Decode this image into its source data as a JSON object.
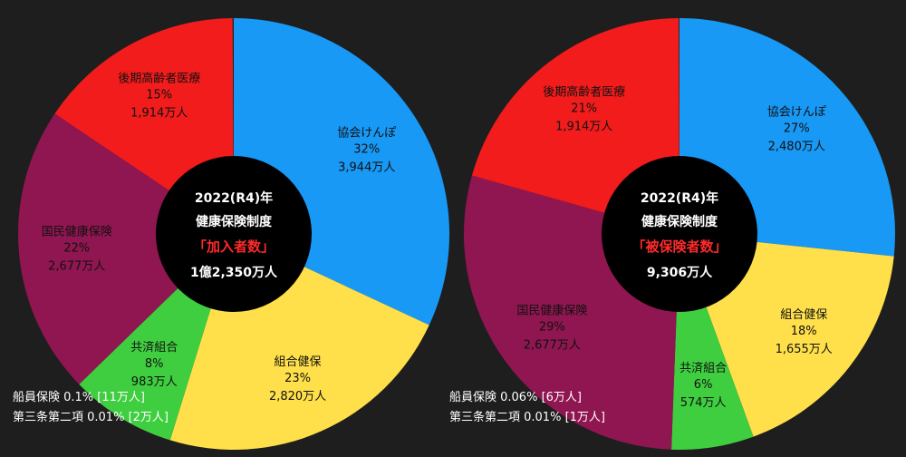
{
  "chart_data": [
    {
      "type": "pie",
      "title": "2022(R4)年 健康保険制度",
      "subtitle": "「加入者数」",
      "total": "1億2,350万人",
      "slices": [
        {
          "name": "協会けんぽ",
          "percent": "32%",
          "value": "3,944万人",
          "share": 0.3194,
          "color": "#1899f5"
        },
        {
          "name": "組合健保",
          "percent": "23%",
          "value": "2,820万人",
          "share": 0.2283,
          "color": "#ffe04a"
        },
        {
          "name": "共済組合",
          "percent": "8%",
          "value": "983万人",
          "share": 0.0796,
          "color": "#3fce3f"
        },
        {
          "name": "国民健康保険",
          "percent": "22%",
          "value": "2,677万人",
          "share": 0.2168,
          "color": "#8f1650"
        },
        {
          "name": "後期高齢者医療",
          "percent": "15%",
          "value": "1,914万人",
          "share": 0.155,
          "color": "#f21c1c"
        }
      ],
      "notes": [
        "船員保険 0.1% [11万人]",
        "第三条第二項 0.01% [2万人]"
      ]
    },
    {
      "type": "pie",
      "title": "2022(R4)年 健康保険制度",
      "subtitle": "「被保険者数」",
      "total": "9,306万人",
      "slices": [
        {
          "name": "協会けんぽ",
          "percent": "27%",
          "value": "2,480万人",
          "share": 0.2665,
          "color": "#1899f5"
        },
        {
          "name": "組合健保",
          "percent": "18%",
          "value": "1,655万人",
          "share": 0.1778,
          "color": "#ffe04a"
        },
        {
          "name": "共済組合",
          "percent": "6%",
          "value": "574万人",
          "share": 0.0617,
          "color": "#3fce3f"
        },
        {
          "name": "国民健康保険",
          "percent": "29%",
          "value": "2,677万人",
          "share": 0.2877,
          "color": "#8f1650"
        },
        {
          "name": "後期高齢者医療",
          "percent": "21%",
          "value": "1,914万人",
          "share": 0.2057,
          "color": "#f21c1c"
        }
      ],
      "notes": [
        "船員保険 0.06% [6万人]",
        "第三条第二項 0.01% [1万人]"
      ]
    }
  ]
}
